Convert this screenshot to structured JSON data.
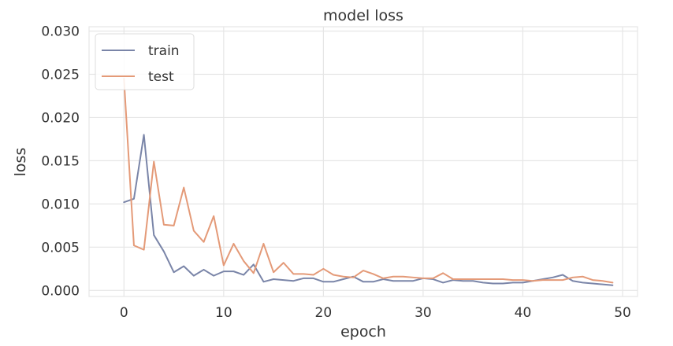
{
  "chart_data": {
    "type": "line",
    "title": "model loss",
    "xlabel": "epoch",
    "ylabel": "loss",
    "xlim": [
      -3.5,
      51.5
    ],
    "ylim": [
      -0.0007,
      0.0305
    ],
    "xticks": [
      0,
      10,
      20,
      30,
      40,
      50
    ],
    "xtick_labels": [
      "0",
      "10",
      "20",
      "30",
      "40",
      "50"
    ],
    "yticks": [
      0.0,
      0.005,
      0.01,
      0.015,
      0.02,
      0.025,
      0.03
    ],
    "ytick_labels": [
      "0.000",
      "0.005",
      "0.010",
      "0.015",
      "0.020",
      "0.025",
      "0.030"
    ],
    "grid": true,
    "legend_position": "top-left",
    "x": [
      0,
      1,
      2,
      3,
      4,
      5,
      6,
      7,
      8,
      9,
      10,
      11,
      12,
      13,
      14,
      15,
      16,
      17,
      18,
      19,
      20,
      21,
      22,
      23,
      24,
      25,
      26,
      27,
      28,
      29,
      30,
      31,
      32,
      33,
      34,
      35,
      36,
      37,
      38,
      39,
      40,
      41,
      42,
      43,
      44,
      45,
      46,
      47,
      48,
      49
    ],
    "series": [
      {
        "name": "train",
        "color": "#7a85a8",
        "values": [
          0.0102,
          0.0106,
          0.018,
          0.0064,
          0.0045,
          0.0021,
          0.0028,
          0.0017,
          0.0024,
          0.0017,
          0.0022,
          0.0022,
          0.0018,
          0.003,
          0.001,
          0.0013,
          0.0012,
          0.0011,
          0.0014,
          0.0014,
          0.001,
          0.001,
          0.0013,
          0.0016,
          0.001,
          0.001,
          0.0013,
          0.0011,
          0.0011,
          0.0011,
          0.0014,
          0.0013,
          0.0009,
          0.0012,
          0.0011,
          0.0011,
          0.0009,
          0.0008,
          0.0008,
          0.0009,
          0.0009,
          0.0011,
          0.0013,
          0.0015,
          0.0018,
          0.0011,
          0.0009,
          0.0008,
          0.0007,
          0.0006
        ]
      },
      {
        "name": "test",
        "color": "#e49a78",
        "values": [
          0.0245,
          0.0052,
          0.0047,
          0.0149,
          0.0076,
          0.0075,
          0.0119,
          0.0069,
          0.0056,
          0.0086,
          0.0029,
          0.0054,
          0.0034,
          0.002,
          0.0054,
          0.0021,
          0.0032,
          0.0019,
          0.0019,
          0.0018,
          0.0025,
          0.0018,
          0.0016,
          0.0015,
          0.0023,
          0.0019,
          0.0014,
          0.0016,
          0.0016,
          0.0015,
          0.0014,
          0.0014,
          0.002,
          0.0013,
          0.0013,
          0.0013,
          0.0013,
          0.0013,
          0.0013,
          0.0012,
          0.0012,
          0.0011,
          0.0012,
          0.0012,
          0.0012,
          0.0015,
          0.0016,
          0.0012,
          0.0011,
          0.0009
        ]
      }
    ]
  }
}
